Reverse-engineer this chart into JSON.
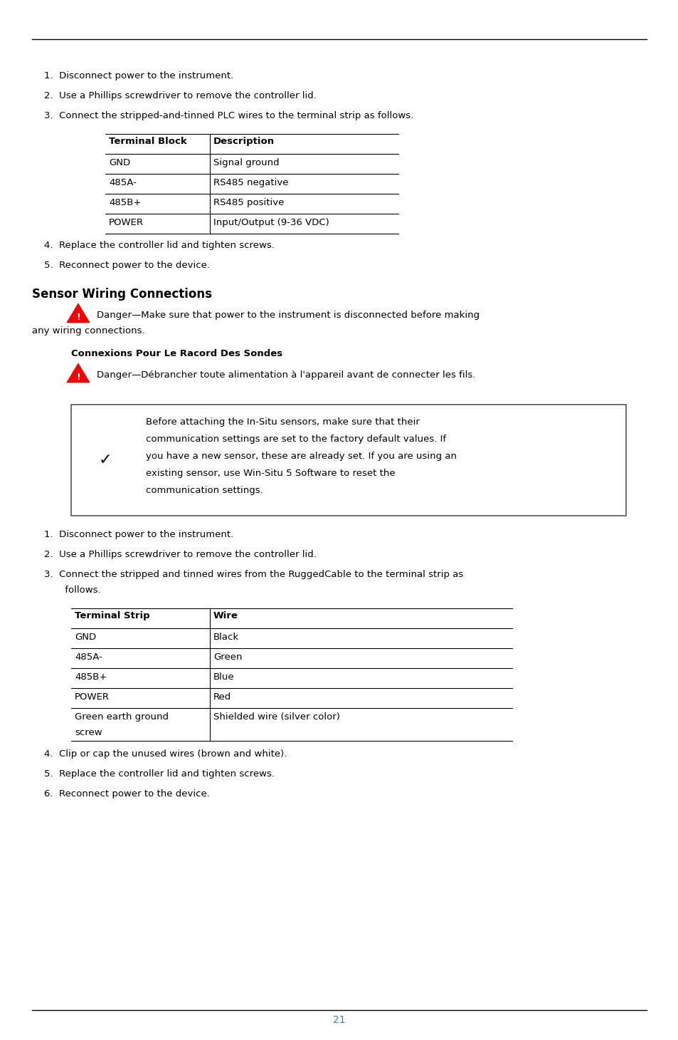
{
  "bg_color": "#ffffff",
  "text_color": "#000000",
  "page_number": "21",
  "page_number_color": "#4472c4",
  "list1": [
    "1.  Disconnect power to the instrument.",
    "2.  Use a Phillips screwdriver to remove the controller lid.",
    "3.  Connect the stripped-and-tinned PLC wires to the terminal strip as follows."
  ],
  "table1_headers": [
    "Terminal Block",
    "Description"
  ],
  "table1_rows": [
    [
      "GND",
      "Signal ground"
    ],
    [
      "485A-",
      "RS485 negative"
    ],
    [
      "485B+",
      "RS485 positive"
    ],
    [
      "POWER",
      "Input/Output (9-36 VDC)"
    ]
  ],
  "list1_cont": [
    "4.  Replace the controller lid and tighten screws.",
    "5.  Reconnect power to the device."
  ],
  "section_heading": "Sensor Wiring Connections",
  "danger1_line1": "Danger—Make sure that power to the instrument is disconnected before making",
  "danger1_line2": "any wiring connections.",
  "subheading": "Connexions Pour Le Racord Des Sondes",
  "danger2_text": "Danger—Débrancher toute alimentation à l'appareil avant de connecter les fils.",
  "note_lines": [
    "Before attaching the In-Situ sensors, make sure that their",
    "communication settings are set to the factory default values. If",
    "you have a new sensor, these are already set. If you are using an",
    "existing sensor, use Win-Situ 5 Software to reset the",
    "communication settings."
  ],
  "list2_line1": "1.  Disconnect power to the instrument.",
  "list2_line2": "2.  Use a Phillips screwdriver to remove the controller lid.",
  "list2_line3a": "3.  Connect the stripped and tinned wires from the RuggedCable to the terminal strip as",
  "list2_line3b": "     follows.",
  "table2_headers": [
    "Terminal Strip",
    "Wire"
  ],
  "table2_rows": [
    [
      "GND",
      "Black"
    ],
    [
      "485A-",
      "Green"
    ],
    [
      "485B+",
      "Blue"
    ],
    [
      "POWER",
      "Red"
    ],
    [
      "Green earth ground\nscrew",
      "Shielded wire (silver color)"
    ]
  ],
  "list2_cont": [
    "4.  Clip or cap the unused wires (brown and white).",
    "5.  Replace the controller lid and tighten screws.",
    "6.  Reconnect power to the device."
  ]
}
